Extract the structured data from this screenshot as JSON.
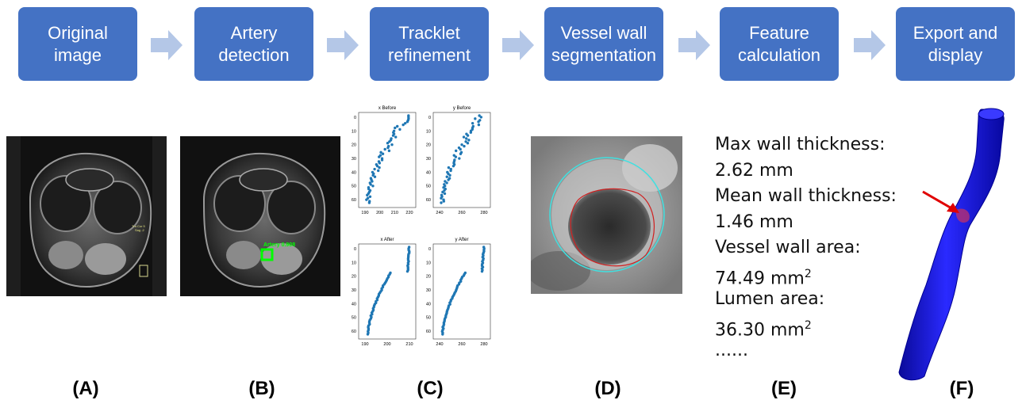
{
  "steps": [
    {
      "label": "Original\nimage"
    },
    {
      "label": "Artery\ndetection"
    },
    {
      "label": "Tracklet\nrefinement"
    },
    {
      "label": "Vessel wall\nsegmentation"
    },
    {
      "label": "Feature\ncalculation"
    },
    {
      "label": "Export and\ndisplay"
    }
  ],
  "panel_labels": [
    "(A)",
    "(B)",
    "(C)",
    "(D)",
    "(E)",
    "(F)"
  ],
  "panel_a": {
    "overlay_line1": "Tra Cor  5",
    "overlay_line2": "Sag  -2"
  },
  "panel_b": {
    "detection_label": "Artery 0.908"
  },
  "panel_c": {
    "plots": [
      {
        "title": "x Before",
        "xticks": [
          "190",
          "200",
          "210",
          "220"
        ],
        "yticks": [
          "0",
          "10",
          "20",
          "30",
          "40",
          "50",
          "60"
        ]
      },
      {
        "title": "y Before",
        "xticks": [
          "240",
          "260",
          "280"
        ],
        "yticks": [
          "0",
          "10",
          "20",
          "30",
          "40",
          "50",
          "60"
        ]
      },
      {
        "title": "x After",
        "xticks": [
          "190",
          "200",
          "210"
        ],
        "yticks": [
          "0",
          "10",
          "20",
          "30",
          "40",
          "50",
          "60"
        ]
      },
      {
        "title": "y After",
        "xticks": [
          "240",
          "260",
          "280"
        ],
        "yticks": [
          "0",
          "10",
          "20",
          "30",
          "40",
          "50",
          "60"
        ]
      }
    ]
  },
  "features": {
    "lines": [
      {
        "text": "Max wall thickness:"
      },
      {
        "text": "2.62 mm"
      },
      {
        "text": "Mean wall thickness:"
      },
      {
        "text": "1.46 mm"
      },
      {
        "text": "Vessel wall area:"
      },
      {
        "text": "74.49 mm",
        "sup": "2"
      },
      {
        "text": "Lumen area:"
      },
      {
        "text": "36.30 mm",
        "sup": "2"
      },
      {
        "text": "......"
      }
    ]
  },
  "colors": {
    "step_box": "#4472c4",
    "arrow": "#b4c7e7",
    "scatter": "#1f77b4",
    "vessel": "#1a1ae0",
    "outer_contour": "#40e0e0",
    "inner_contour": "#d02020",
    "detection_box": "#00ff00"
  }
}
